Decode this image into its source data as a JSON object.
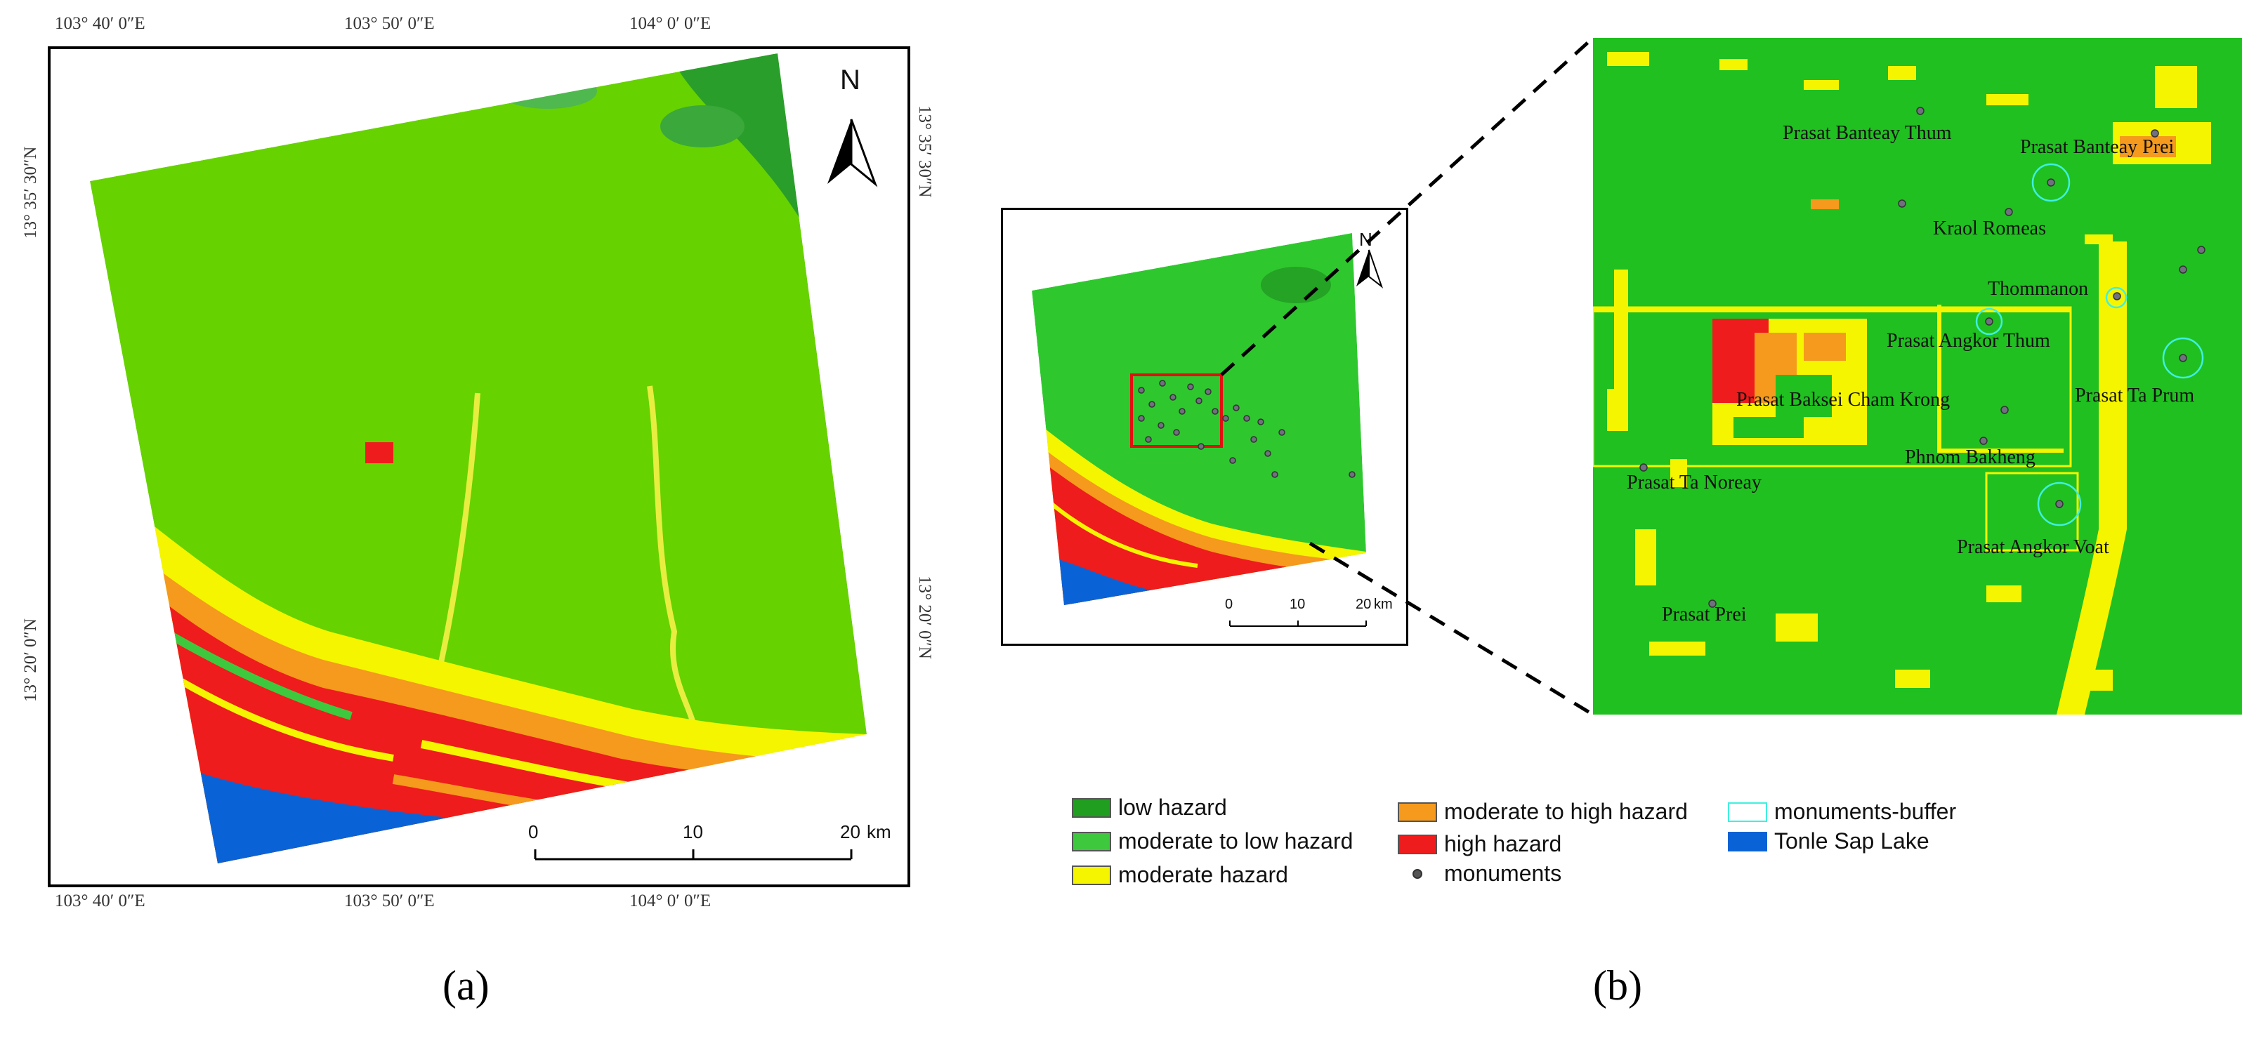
{
  "panel_a": {
    "label": "(a)",
    "coords_top": [
      "103° 40′ 0″E",
      "103° 50′ 0″E",
      "104° 0′ 0″E"
    ],
    "coords_bottom": [
      "103° 40′ 0″E",
      "103° 50′ 0″E",
      "104° 0′ 0″E"
    ],
    "coords_left": [
      "13° 35′ 30″N",
      "13° 20′ 0″N"
    ],
    "coords_right": [
      "13° 35′ 30″N",
      "13° 20′ 0″N"
    ],
    "north": "N",
    "scale": {
      "ticks": [
        "0",
        "10",
        "20"
      ],
      "unit": "km"
    }
  },
  "panel_b": {
    "label": "(b)",
    "north": "N",
    "scale": {
      "ticks": [
        "0",
        "10",
        "20"
      ],
      "unit": "km"
    },
    "places": [
      "Prasat Banteay Thum",
      "Prasat Banteay Prei",
      "Kraol Romeas",
      "Thommanon",
      "Prasat Angkor Thum",
      "Prasat Baksei Cham Krong",
      "Prasat Ta Prum",
      "Phnom Bakheng",
      "Prasat Ta Noreay",
      "Prasat Angkor Voat",
      "Prasat Prei"
    ]
  },
  "legend": [
    {
      "label": "low hazard",
      "color": "#1f9e1f"
    },
    {
      "label": "moderate to low hazard",
      "color": "#3ec83e"
    },
    {
      "label": "moderate hazard",
      "color": "#f5f500"
    },
    {
      "label": "moderate to high hazard",
      "color": "#f59a1c"
    },
    {
      "label": "high hazard",
      "color": "#ee1c1c"
    },
    {
      "label": "monuments",
      "color": "#555555"
    },
    {
      "label": "monuments-buffer",
      "color": "#3ff0e0"
    },
    {
      "label": "Tonle Sap Lake",
      "color": "#0a63d6"
    }
  ]
}
